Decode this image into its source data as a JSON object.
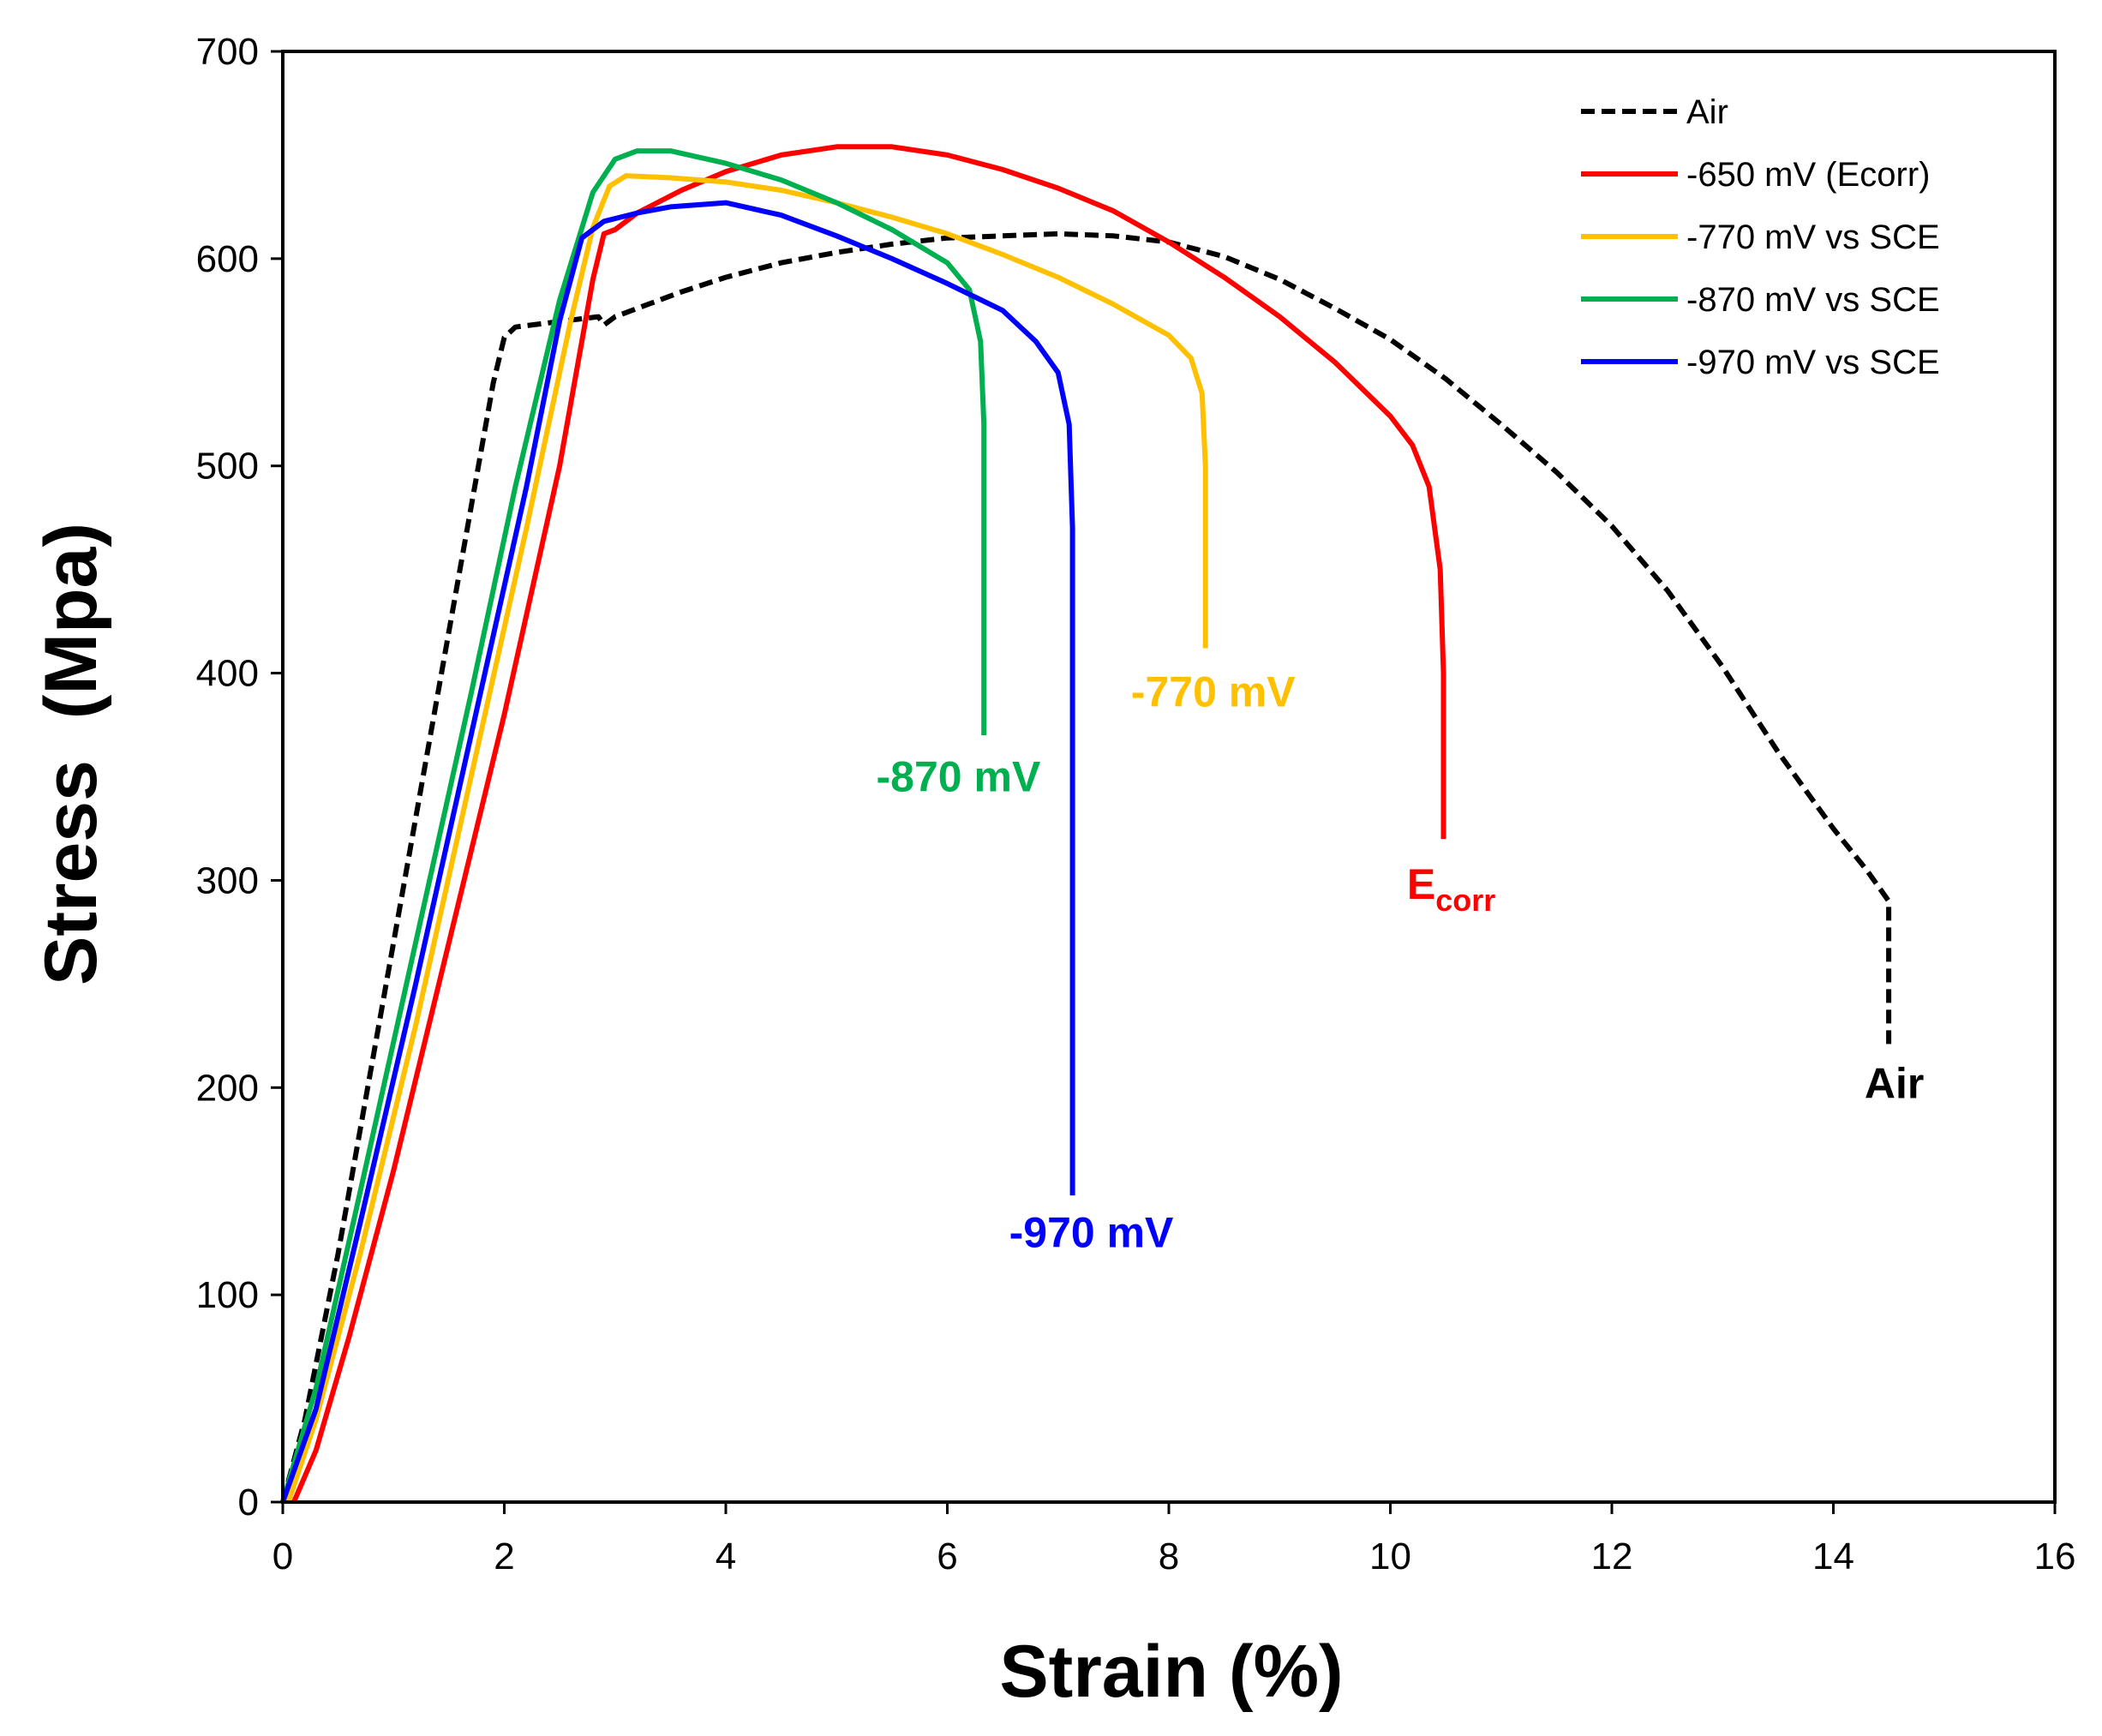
{
  "chart_data": {
    "type": "line",
    "title": "",
    "xlabel": "Strain (%)",
    "ylabel": "Stress  (Mpa)",
    "xlim": [
      0,
      16
    ],
    "ylim": [
      0,
      700
    ],
    "xticks": [
      0,
      2,
      4,
      6,
      8,
      10,
      12,
      14,
      16
    ],
    "yticks": [
      0,
      100,
      200,
      300,
      400,
      500,
      600,
      700
    ],
    "grid": false,
    "legend_position": "top-right",
    "series": [
      {
        "name": "Air",
        "color": "#000000",
        "dash": "dashed",
        "points": [
          [
            0,
            0
          ],
          [
            0.2,
            40
          ],
          [
            0.5,
            120
          ],
          [
            0.8,
            210
          ],
          [
            1.1,
            300
          ],
          [
            1.4,
            390
          ],
          [
            1.7,
            480
          ],
          [
            1.9,
            540
          ],
          [
            2.0,
            562
          ],
          [
            2.1,
            567
          ],
          [
            2.4,
            569
          ],
          [
            2.7,
            571
          ],
          [
            2.85,
            572
          ],
          [
            2.9,
            568
          ],
          [
            3.0,
            572
          ],
          [
            3.3,
            578
          ],
          [
            3.6,
            584
          ],
          [
            4.0,
            591
          ],
          [
            4.5,
            598
          ],
          [
            5.0,
            603
          ],
          [
            5.5,
            607
          ],
          [
            6.0,
            610
          ],
          [
            6.5,
            611
          ],
          [
            7.0,
            612
          ],
          [
            7.5,
            611
          ],
          [
            8.0,
            608
          ],
          [
            8.5,
            601
          ],
          [
            9.0,
            590
          ],
          [
            9.5,
            576
          ],
          [
            10.0,
            561
          ],
          [
            10.5,
            542
          ],
          [
            11.0,
            520
          ],
          [
            11.5,
            497
          ],
          [
            12.0,
            471
          ],
          [
            12.5,
            440
          ],
          [
            13.0,
            403
          ],
          [
            13.5,
            362
          ],
          [
            14.0,
            325
          ],
          [
            14.3,
            305
          ],
          [
            14.5,
            290
          ],
          [
            14.5,
            250
          ],
          [
            14.5,
            220
          ]
        ],
        "end_label": "Air",
        "end_label_pos": [
          14.55,
          195
        ]
      },
      {
        "name": "-650 mV (Ecorr)",
        "color": "#ff0000",
        "dash": "solid",
        "points": [
          [
            0.1,
            0
          ],
          [
            0.3,
            25
          ],
          [
            0.6,
            80
          ],
          [
            1.0,
            160
          ],
          [
            1.5,
            270
          ],
          [
            2.0,
            380
          ],
          [
            2.5,
            500
          ],
          [
            2.8,
            590
          ],
          [
            2.9,
            612
          ],
          [
            3.0,
            614
          ],
          [
            3.2,
            622
          ],
          [
            3.6,
            633
          ],
          [
            4.0,
            642
          ],
          [
            4.5,
            650
          ],
          [
            5.0,
            654
          ],
          [
            5.5,
            654
          ],
          [
            6.0,
            650
          ],
          [
            6.5,
            643
          ],
          [
            7.0,
            634
          ],
          [
            7.5,
            623
          ],
          [
            8.0,
            608
          ],
          [
            8.5,
            591
          ],
          [
            9.0,
            572
          ],
          [
            9.5,
            550
          ],
          [
            10.0,
            524
          ],
          [
            10.2,
            510
          ],
          [
            10.35,
            490
          ],
          [
            10.45,
            450
          ],
          [
            10.48,
            400
          ],
          [
            10.48,
            320
          ]
        ],
        "end_label": "E",
        "end_label_sub": "corr",
        "end_label_pos": [
          10.55,
          291
        ]
      },
      {
        "name": "-770 mV vs SCE",
        "color": "#ffc000",
        "dash": "solid",
        "points": [
          [
            0.05,
            0
          ],
          [
            0.3,
            40
          ],
          [
            0.7,
            120
          ],
          [
            1.2,
            230
          ],
          [
            1.7,
            350
          ],
          [
            2.2,
            470
          ],
          [
            2.6,
            570
          ],
          [
            2.8,
            615
          ],
          [
            2.95,
            635
          ],
          [
            3.1,
            640
          ],
          [
            3.5,
            639
          ],
          [
            4.0,
            637
          ],
          [
            4.5,
            633
          ],
          [
            5.0,
            627
          ],
          [
            5.5,
            620
          ],
          [
            6.0,
            612
          ],
          [
            6.5,
            602
          ],
          [
            7.0,
            591
          ],
          [
            7.5,
            578
          ],
          [
            8.0,
            563
          ],
          [
            8.2,
            552
          ],
          [
            8.3,
            535
          ],
          [
            8.33,
            500
          ],
          [
            8.33,
            460
          ],
          [
            8.33,
            412
          ]
        ],
        "end_label": "-770 mV",
        "end_label_pos": [
          8.4,
          384
        ]
      },
      {
        "name": "-870 mV vs SCE",
        "color": "#00b050",
        "dash": "solid",
        "points": [
          [
            0,
            0
          ],
          [
            0.3,
            55
          ],
          [
            0.7,
            150
          ],
          [
            1.2,
            270
          ],
          [
            1.7,
            390
          ],
          [
            2.1,
            490
          ],
          [
            2.5,
            580
          ],
          [
            2.8,
            632
          ],
          [
            3.0,
            648
          ],
          [
            3.2,
            652
          ],
          [
            3.5,
            652
          ],
          [
            4.0,
            646
          ],
          [
            4.5,
            638
          ],
          [
            5.0,
            627
          ],
          [
            5.5,
            614
          ],
          [
            6.0,
            598
          ],
          [
            6.2,
            585
          ],
          [
            6.3,
            560
          ],
          [
            6.33,
            520
          ],
          [
            6.33,
            450
          ],
          [
            6.33,
            370
          ]
        ],
        "end_label": "-870 mV",
        "end_label_pos": [
          6.1,
          343
        ]
      },
      {
        "name": "-970 mV vs SCE",
        "color": "#0000ff",
        "dash": "solid",
        "points": [
          [
            0,
            0
          ],
          [
            0.3,
            45
          ],
          [
            0.7,
            135
          ],
          [
            1.2,
            250
          ],
          [
            1.7,
            370
          ],
          [
            2.2,
            490
          ],
          [
            2.5,
            570
          ],
          [
            2.7,
            610
          ],
          [
            2.9,
            618
          ],
          [
            3.2,
            622
          ],
          [
            3.5,
            625
          ],
          [
            4.0,
            627
          ],
          [
            4.5,
            621
          ],
          [
            5.0,
            611
          ],
          [
            5.5,
            600
          ],
          [
            6.0,
            588
          ],
          [
            6.5,
            575
          ],
          [
            6.8,
            560
          ],
          [
            7.0,
            545
          ],
          [
            7.1,
            520
          ],
          [
            7.13,
            470
          ],
          [
            7.13,
            350
          ],
          [
            7.13,
            250
          ],
          [
            7.13,
            148
          ]
        ],
        "end_label": "-970 mV",
        "end_label_pos": [
          7.3,
          123
        ]
      }
    ]
  }
}
